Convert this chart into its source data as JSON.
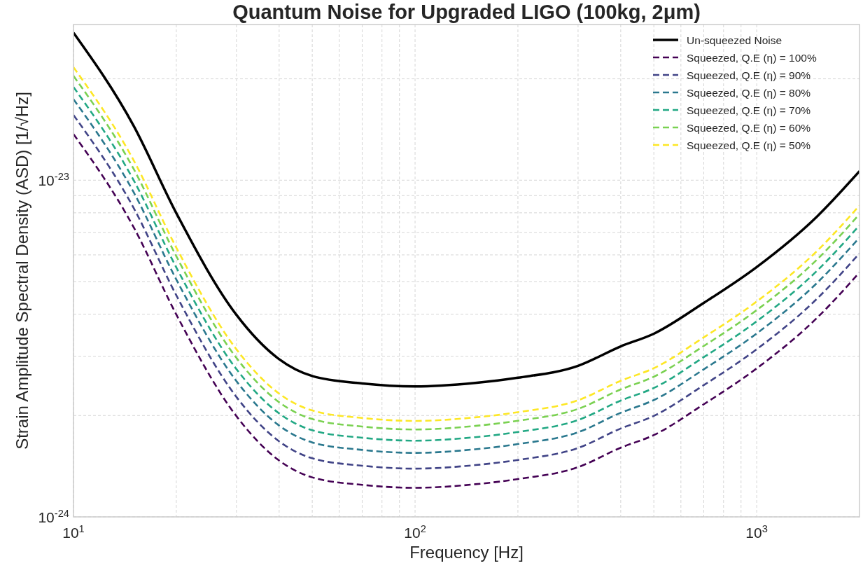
{
  "chart_data": {
    "type": "line",
    "title": "Quantum Noise for Upgraded LIGO (100kg, 2μm)",
    "xlabel": "Frequency [Hz]",
    "ylabel": "Strain Amplitude Spectral Density (ASD) [1/√Hz]",
    "log": "xy",
    "grid": true,
    "legend": "top right",
    "marker": "none",
    "xlim": [
      10,
      2000
    ],
    "ylim": [
      1e-24,
      2.9e-23
    ],
    "xticks": [
      {
        "value": 10,
        "label": "10$^{1}$"
      },
      {
        "value": 20,
        "label": null
      },
      {
        "value": 30,
        "label": null
      },
      {
        "value": 40,
        "label": null
      },
      {
        "value": 50,
        "label": null
      },
      {
        "value": 60,
        "label": null
      },
      {
        "value": 70,
        "label": null
      },
      {
        "value": 80,
        "label": null
      },
      {
        "value": 90,
        "label": null
      },
      {
        "value": 100,
        "label": "10$^{2}$"
      },
      {
        "value": 200,
        "label": null
      },
      {
        "value": 300,
        "label": null
      },
      {
        "value": 400,
        "label": null
      },
      {
        "value": 500,
        "label": null
      },
      {
        "value": 600,
        "label": null
      },
      {
        "value": 700,
        "label": null
      },
      {
        "value": 800,
        "label": null
      },
      {
        "value": 900,
        "label": null
      },
      {
        "value": 1000,
        "label": "10$^{3}$"
      }
    ],
    "yticks": [
      {
        "value": 1e-24,
        "label": "10$^{-24}$"
      },
      {
        "value": 2e-24,
        "label": null
      },
      {
        "value": 3e-24,
        "label": null
      },
      {
        "value": 4e-24,
        "label": null
      },
      {
        "value": 5e-24,
        "label": null
      },
      {
        "value": 6e-24,
        "label": null
      },
      {
        "value": 7e-24,
        "label": null
      },
      {
        "value": 8e-24,
        "label": null
      },
      {
        "value": 9e-24,
        "label": null
      },
      {
        "value": 1e-23,
        "label": "10$^{-23}$"
      },
      {
        "value": 2e-23,
        "label": null
      }
    ],
    "x": [
      10,
      15,
      20,
      30,
      40,
      50,
      70,
      100,
      150,
      200,
      300,
      400,
      500,
      700,
      1000,
      1500,
      2000
    ],
    "series": [
      {
        "name": "Un-squeezed Noise",
        "color": "#000000",
        "line_style": "solid",
        "values": [
          2.74e-23,
          1.45e-23,
          7.98e-24,
          3.98e-24,
          2.94e-24,
          2.62e-24,
          2.49e-24,
          2.44e-24,
          2.5e-24,
          2.59e-24,
          2.81e-24,
          3.21e-24,
          3.5e-24,
          4.32e-24,
          5.52e-24,
          7.79e-24,
          1.064e-23
        ]
      },
      {
        "name": "Squeezed, Q.E (η) = 100%",
        "color": "#440154",
        "line_style": "dashed",
        "values": [
          1.37e-23,
          7.25e-24,
          3.99e-24,
          1.99e-24,
          1.47e-24,
          1.31e-24,
          1.245e-24,
          1.22e-24,
          1.25e-24,
          1.295e-24,
          1.405e-24,
          1.605e-24,
          1.75e-24,
          2.16e-24,
          2.76e-24,
          3.895e-24,
          5.32e-24
        ]
      },
      {
        "name": "Squeezed, Q.E (η) = 90%",
        "color": "#414487",
        "line_style": "dashed",
        "values": [
          1.562e-23,
          8.27e-24,
          4.55e-24,
          2.27e-24,
          1.676e-24,
          1.493e-24,
          1.419e-24,
          1.391e-24,
          1.425e-24,
          1.476e-24,
          1.602e-24,
          1.83e-24,
          1.995e-24,
          2.462e-24,
          3.146e-24,
          4.44e-24,
          6.065e-24
        ]
      },
      {
        "name": "Squeezed, Q.E (η) = 80%",
        "color": "#2a788e",
        "line_style": "dashed",
        "values": [
          1.74e-23,
          9.21e-24,
          5.07e-24,
          2.53e-24,
          1.867e-24,
          1.664e-24,
          1.581e-24,
          1.549e-24,
          1.588e-24,
          1.645e-24,
          1.784e-24,
          2.038e-24,
          2.223e-24,
          2.743e-24,
          3.505e-24,
          4.947e-24,
          6.756e-24
        ]
      },
      {
        "name": "Squeezed, Q.E (η) = 70%",
        "color": "#22a884",
        "line_style": "dashed",
        "values": [
          1.891e-23,
          1e-23,
          5.506e-24,
          2.746e-24,
          2.029e-24,
          1.808e-24,
          1.718e-24,
          1.684e-24,
          1.725e-24,
          1.787e-24,
          1.939e-24,
          2.215e-24,
          2.415e-24,
          2.981e-24,
          3.809e-24,
          5.375e-24,
          7.342e-24
        ]
      },
      {
        "name": "Squeezed, Q.E (η) = 60%",
        "color": "#7ad151",
        "line_style": "dashed",
        "values": [
          2.041e-23,
          1.08e-23,
          5.945e-24,
          2.965e-24,
          2.19e-24,
          1.952e-24,
          1.855e-24,
          1.818e-24,
          1.863e-24,
          1.93e-24,
          2.093e-24,
          2.391e-24,
          2.608e-24,
          3.218e-24,
          4.112e-24,
          5.804e-24,
          7.927e-24
        ]
      },
      {
        "name": "Squeezed, Q.E (η) = 50%",
        "color": "#fde725",
        "line_style": "dashed",
        "values": [
          2.165e-23,
          1.146e-23,
          6.304e-24,
          3.144e-24,
          2.323e-24,
          2.07e-24,
          1.967e-24,
          1.928e-24,
          1.975e-24,
          2.046e-24,
          2.22e-24,
          2.536e-24,
          2.765e-24,
          3.413e-24,
          4.361e-24,
          6.154e-24,
          8.406e-24
        ]
      }
    ]
  }
}
